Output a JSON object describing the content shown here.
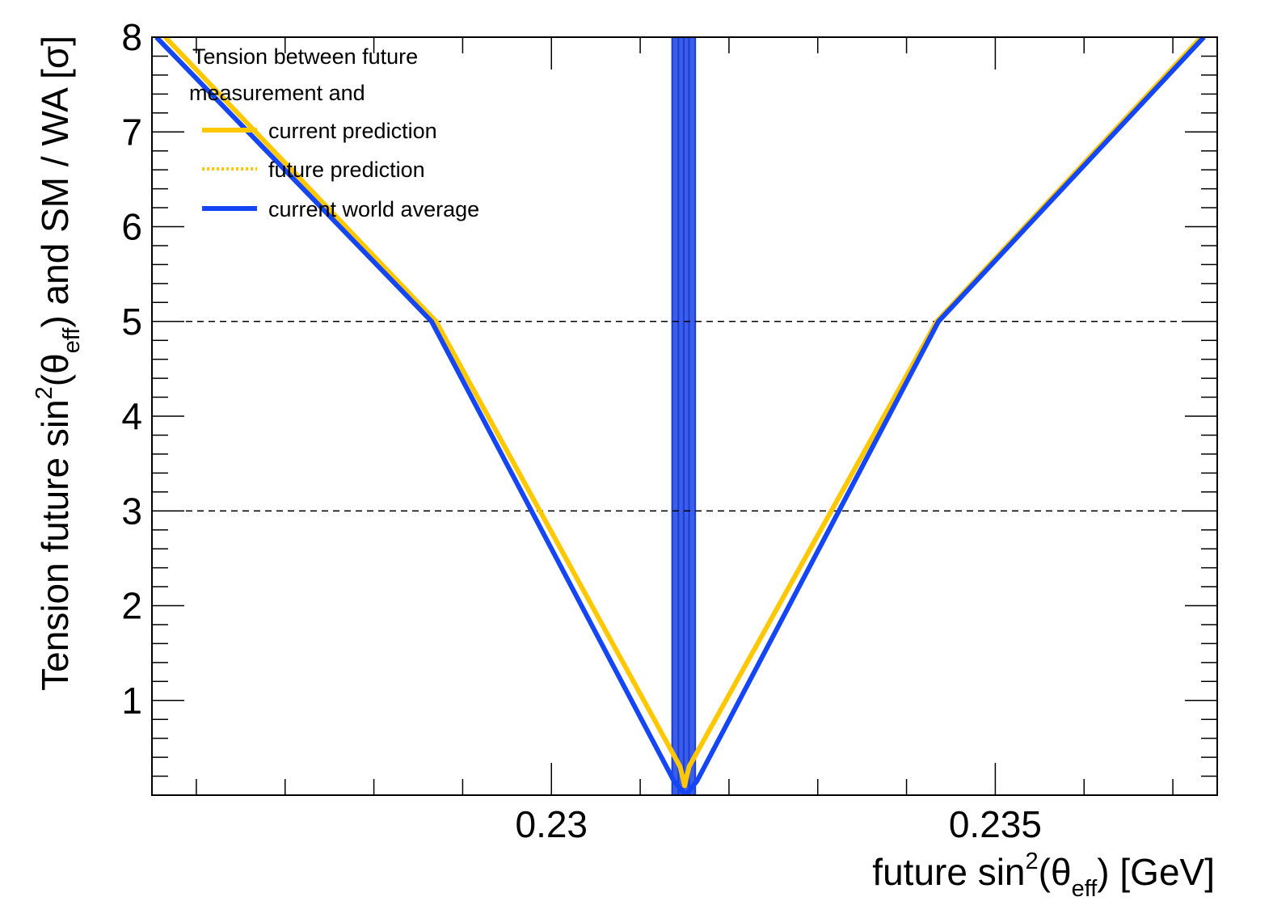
{
  "chart_data": {
    "type": "line",
    "xlabel": "future sin²(θeff) [GeV]",
    "xlabel_parts": {
      "pre": "future sin",
      "sup": "2",
      "mid": "(θ",
      "sub": "eff",
      "post": ") [GeV]"
    },
    "ylabel": "Tension future sin²(θeff) and SM / WA [σ]",
    "ylabel_parts": {
      "pre": "Tension future sin",
      "sup": "2",
      "mid": "(θ",
      "sub": "eff",
      "post": ") and SM / WA [σ]"
    },
    "xlim": [
      0.2255,
      0.2375
    ],
    "ylim": [
      0,
      8
    ],
    "x_ticks": [
      0.23,
      0.235
    ],
    "x_tick_labels": [
      "0.23",
      "0.235"
    ],
    "y_ticks": [
      1,
      2,
      3,
      4,
      5,
      6,
      7,
      8
    ],
    "y_tick_labels": [
      "1",
      "2",
      "3",
      "4",
      "5",
      "6",
      "7",
      "8"
    ],
    "reference_lines": [
      3,
      5
    ],
    "band": {
      "x_min": 0.23136,
      "x_max": 0.23162,
      "color": "#3a5ee8",
      "inner_lines": [
        0.23143,
        0.23149,
        0.23155
      ]
    },
    "series": [
      {
        "name": "current prediction",
        "color": "#ffc800",
        "style": "solid",
        "x": [
          0.22565,
          0.2287,
          0.23145,
          0.2315,
          0.23155,
          0.23434,
          0.23732
        ],
        "y": [
          8.0,
          5.0,
          0.3,
          0.1,
          0.3,
          5.0,
          8.0
        ]
      },
      {
        "name": "future prediction",
        "color": "#ffc800",
        "style": "dotted",
        "x": [
          0.22565,
          0.2287,
          0.23145,
          0.2315,
          0.23155,
          0.23434,
          0.23732
        ],
        "y": [
          8.0,
          5.0,
          0.3,
          0.1,
          0.3,
          5.0,
          8.0
        ]
      },
      {
        "name": "current world average",
        "color": "#1446f5",
        "style": "solid",
        "x": [
          0.22555,
          0.22865,
          0.23138,
          0.23151,
          0.23164,
          0.23436,
          0.23735
        ],
        "y": [
          8.0,
          5.0,
          0.15,
          0.0,
          0.15,
          5.0,
          8.0
        ]
      }
    ],
    "legend": {
      "title_lines": [
        "Tension between future",
        "measurement and"
      ],
      "placement": "top-left",
      "entries": [
        "current prediction",
        "future prediction",
        "current world average"
      ]
    },
    "grid": false
  }
}
